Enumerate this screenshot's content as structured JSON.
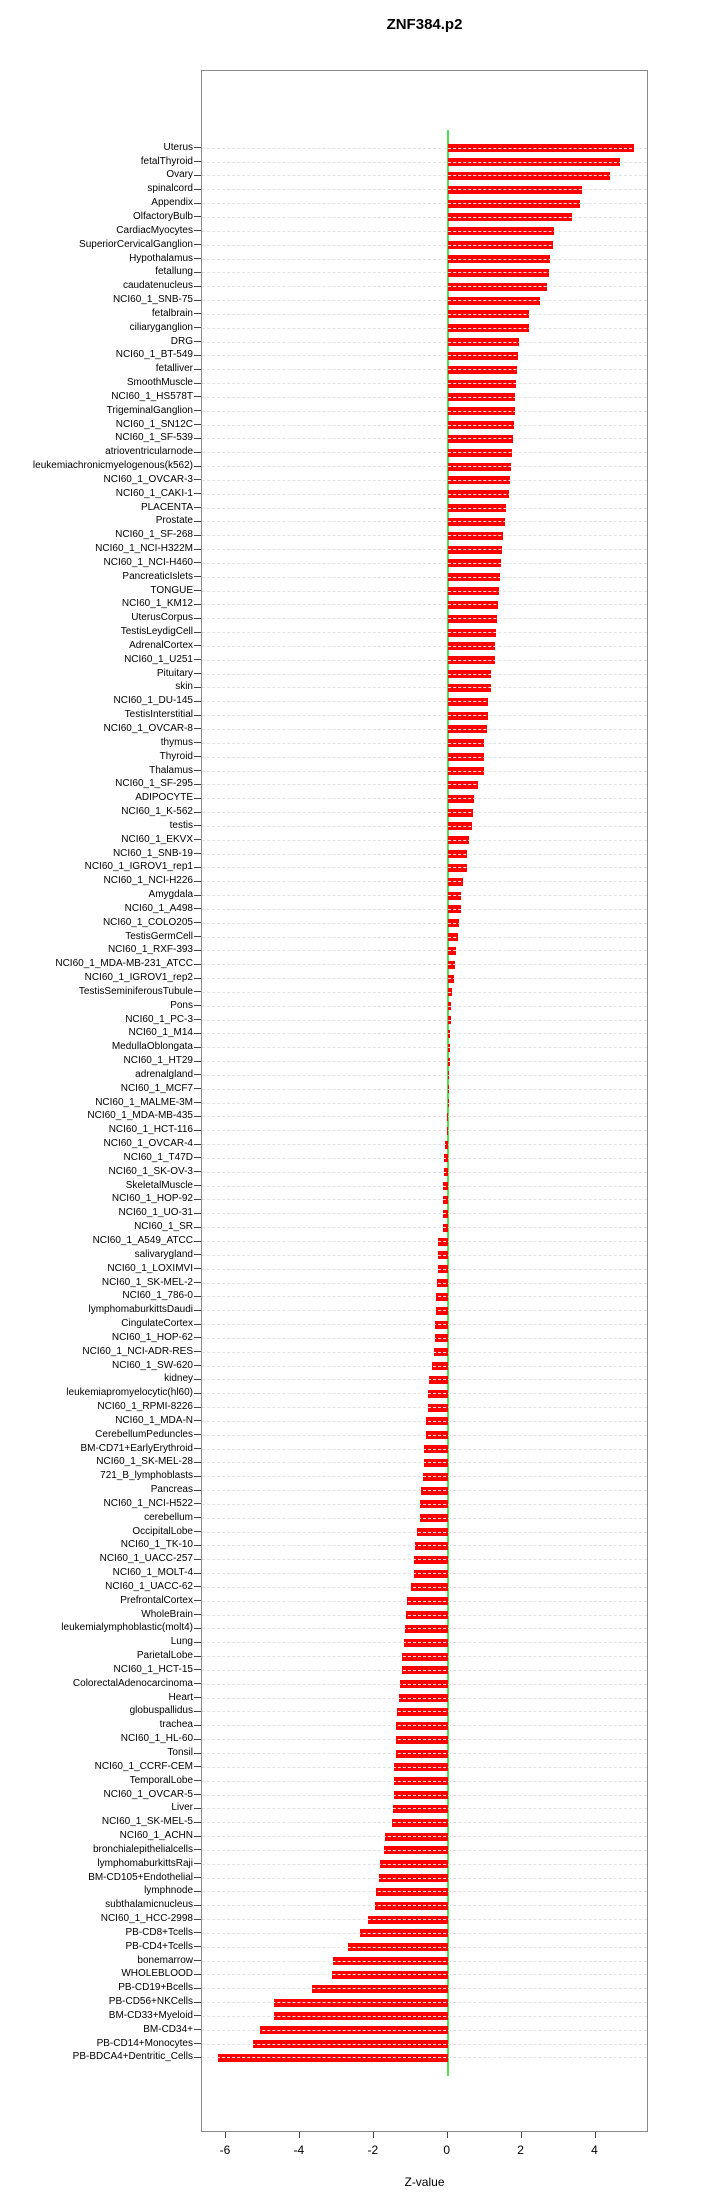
{
  "chart_data": {
    "type": "bar",
    "orientation": "horizontal",
    "title": "ZNF384.p2",
    "xlabel": "Z-value",
    "xticks": [
      -6,
      -4,
      -2,
      0,
      2,
      4
    ],
    "xlim": [
      -6.65,
      5.45
    ],
    "grid": true,
    "bar_color": "#FE0000",
    "zero_line_color": "#4DE54D",
    "categories": [
      "Uterus",
      "fetalThyroid",
      "Ovary",
      "spinalcord",
      "Appendix",
      "OlfactoryBulb",
      "CardiacMyocytes",
      "SuperiorCervicalGanglion",
      "Hypothalamus",
      "fetallung",
      "caudatenucleus",
      "NCI60_1_SNB-75",
      "fetalbrain",
      "ciliaryganglion",
      "DRG",
      "NCI60_1_BT-549",
      "fetalliver",
      "SmoothMuscle",
      "NCI60_1_HS578T",
      "TrigeminalGanglion",
      "NCI60_1_SN12C",
      "NCI60_1_SF-539",
      "atrioventricularnode",
      "leukemiachronicmyelogenous(k562)",
      "NCI60_1_OVCAR-3",
      "NCI60_1_CAKI-1",
      "PLACENTA",
      "Prostate",
      "NCI60_1_SF-268",
      "NCI60_1_NCI-H322M",
      "NCI60_1_NCI-H460",
      "PancreaticIslets",
      "TONGUE",
      "NCI60_1_KM12",
      "UterusCorpus",
      "TestisLeydigCell",
      "AdrenalCortex",
      "NCI60_1_U251",
      "Pituitary",
      "skin",
      "NCI60_1_DU-145",
      "TestisInterstitial",
      "NCI60_1_OVCAR-8",
      "thymus",
      "Thyroid",
      "Thalamus",
      "NCI60_1_SF-295",
      "ADIPOCYTE",
      "NCI60_1_K-562",
      "testis",
      "NCI60_1_EKVX",
      "NCI60_1_SNB-19",
      "NCI60_1_IGROV1_rep1",
      "NCI60_1_NCI-H226",
      "Amygdala",
      "NCI60_1_A498",
      "NCI60_1_COLO205",
      "TestisGermCell",
      "NCI60_1_RXF-393",
      "NCI60_1_MDA-MB-231_ATCC",
      "NCI60_1_IGROV1_rep2",
      "TestisSeminiferousTubule",
      "Pons",
      "NCI60_1_PC-3",
      "NCI60_1_M14",
      "MedullaOblongata",
      "NCI60_1_HT29",
      "adrenalgland",
      "NCI60_1_MCF7",
      "NCI60_1_MALME-3M",
      "NCI60_1_MDA-MB-435",
      "NCI60_1_HCT-116",
      "NCI60_1_OVCAR-4",
      "NCI60_1_T47D",
      "NCI60_1_SK-OV-3",
      "SkeletalMuscle",
      "NCI60_1_HOP-92",
      "NCI60_1_UO-31",
      "NCI60_1_SR",
      "NCI60_1_A549_ATCC",
      "salivarygland",
      "NCI60_1_LOXIMVI",
      "NCI60_1_SK-MEL-2",
      "NCI60_1_786-0",
      "lymphomaburkittsDaudi",
      "CingulateCortex",
      "NCI60_1_HOP-62",
      "NCI60_1_NCI-ADR-RES",
      "NCI60_1_SW-620",
      "kidney",
      "leukemiapromyelocytic(hl60)",
      "NCI60_1_RPMI-8226",
      "NCI60_1_MDA-N",
      "CerebellumPeduncles",
      "BM-CD71+EarlyErythroid",
      "NCI60_1_SK-MEL-28",
      "721_B_lymphoblasts",
      "Pancreas",
      "NCI60_1_NCI-H522",
      "cerebellum",
      "OccipitalLobe",
      "NCI60_1_TK-10",
      "NCI60_1_UACC-257",
      "NCI60_1_MOLT-4",
      "NCI60_1_UACC-62",
      "PrefrontalCortex",
      "WholeBrain",
      "leukemialymphoblastic(molt4)",
      "Lung",
      "ParietalLobe",
      "NCI60_1_HCT-15",
      "ColorectalAdenocarcinoma",
      "Heart",
      "globuspallidus",
      "trachea",
      "NCI60_1_HL-60",
      "Tonsil",
      "NCI60_1_CCRF-CEM",
      "TemporalLobe",
      "NCI60_1_OVCAR-5",
      "Liver",
      "NCI60_1_SK-MEL-5",
      "NCI60_1_ACHN",
      "bronchialepithelialcells",
      "lymphomaburkittsRaji",
      "BM-CD105+Endothelial",
      "lymphnode",
      "subthalamicnucleus",
      "NCI60_1_HCC-2998",
      "PB-CD8+Tcells",
      "PB-CD4+Tcells",
      "bonemarrow",
      "WHOLEBLOOD",
      "PB-CD19+Bcells",
      "PB-CD56+NKCells",
      "BM-CD33+Myeloid",
      "BM-CD34+",
      "PB-CD14+Monocytes",
      "PB-BDCA4+Dentritic_Cells"
    ],
    "values": [
      5.03,
      4.65,
      4.39,
      3.63,
      3.59,
      3.37,
      2.88,
      2.84,
      2.78,
      2.74,
      2.7,
      2.51,
      2.21,
      2.2,
      1.93,
      1.9,
      1.87,
      1.85,
      1.82,
      1.81,
      1.79,
      1.76,
      1.74,
      1.71,
      1.68,
      1.67,
      1.58,
      1.56,
      1.49,
      1.47,
      1.45,
      1.42,
      1.4,
      1.36,
      1.33,
      1.3,
      1.29,
      1.27,
      1.18,
      1.16,
      1.1,
      1.09,
      1.06,
      0.99,
      0.98,
      0.97,
      0.82,
      0.72,
      0.68,
      0.65,
      0.59,
      0.53,
      0.52,
      0.41,
      0.37,
      0.36,
      0.3,
      0.27,
      0.22,
      0.2,
      0.18,
      0.12,
      0.1,
      0.08,
      0.07,
      0.06,
      0.05,
      0.04,
      0.02,
      0.01,
      -0.01,
      -0.03,
      -0.06,
      -0.1,
      -0.11,
      -0.12,
      -0.12,
      -0.13,
      -0.13,
      -0.25,
      -0.26,
      -0.27,
      -0.28,
      -0.32,
      -0.32,
      -0.35,
      -0.35,
      -0.38,
      -0.43,
      -0.51,
      -0.53,
      -0.53,
      -0.58,
      -0.6,
      -0.63,
      -0.64,
      -0.66,
      -0.71,
      -0.75,
      -0.76,
      -0.84,
      -0.89,
      -0.91,
      -0.92,
      -1.0,
      -1.1,
      -1.14,
      -1.16,
      -1.17,
      -1.24,
      -1.25,
      -1.3,
      -1.32,
      -1.38,
      -1.39,
      -1.4,
      -1.41,
      -1.45,
      -1.45,
      -1.46,
      -1.48,
      -1.52,
      -1.69,
      -1.72,
      -1.82,
      -1.87,
      -1.93,
      -1.97,
      -2.17,
      -2.37,
      -2.71,
      -3.1,
      -3.13,
      -3.66,
      -4.69,
      -4.7,
      -5.07,
      -5.27,
      -6.21
    ]
  }
}
